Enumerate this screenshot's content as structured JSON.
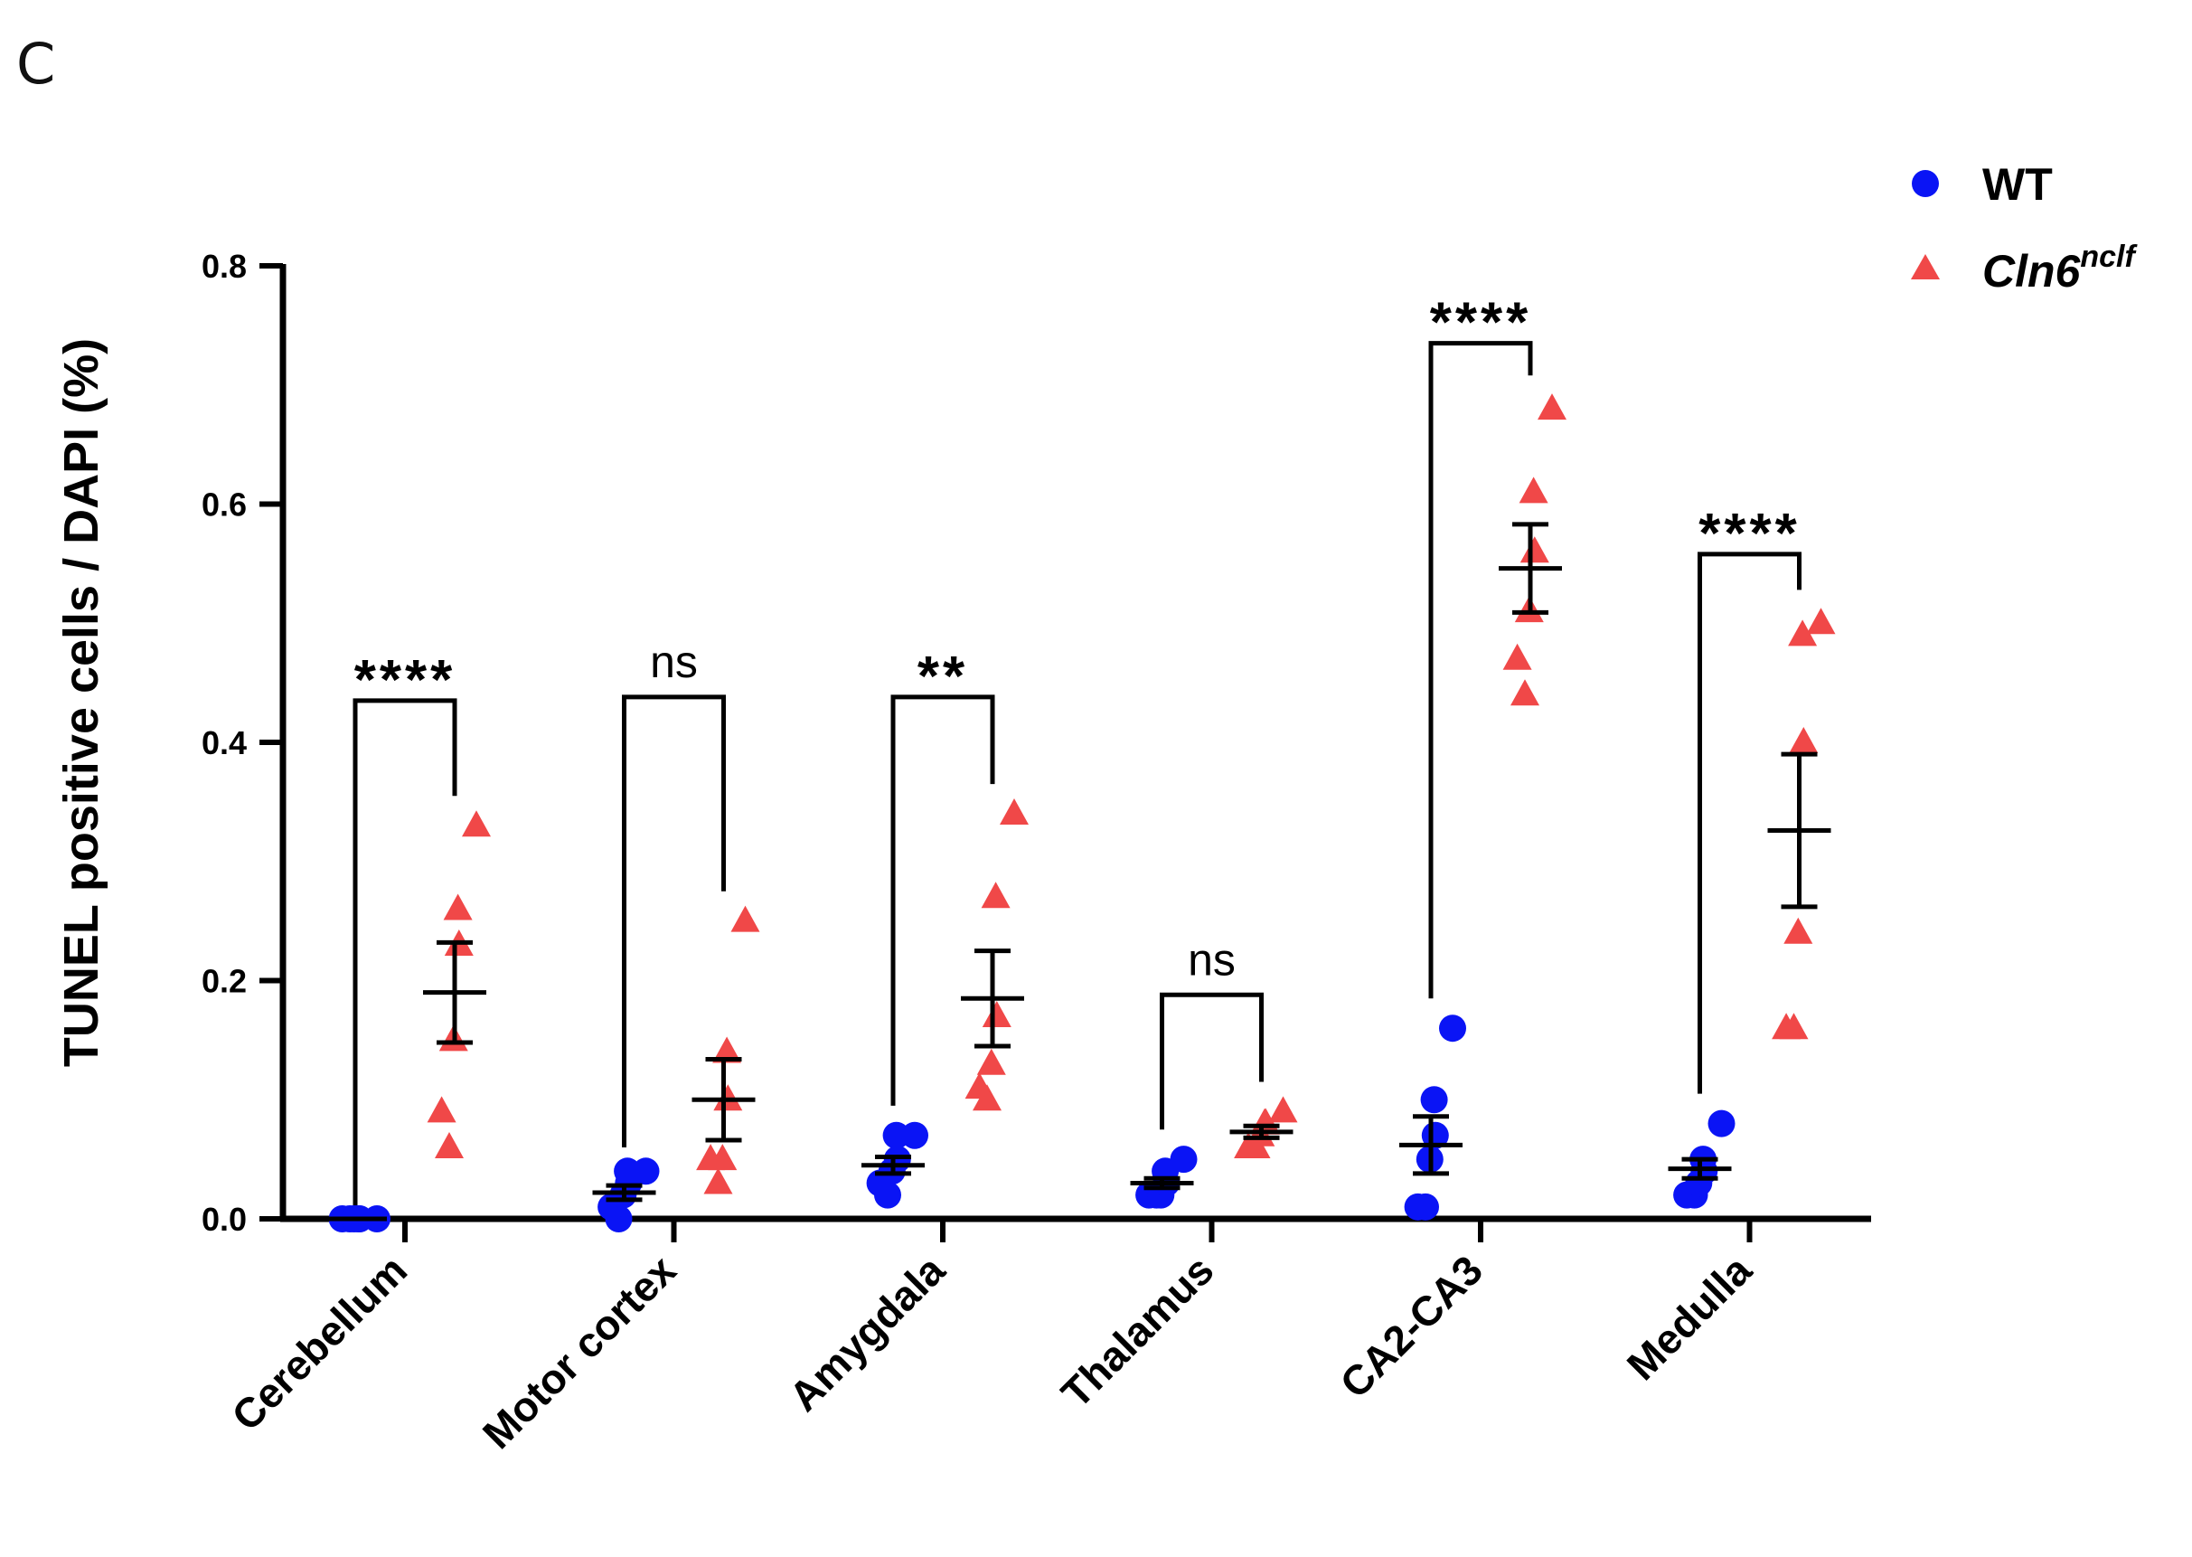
{
  "panel_label": "C",
  "chart_data": {
    "type": "scatter",
    "title": "",
    "xlabel": "",
    "ylabel": "TUNEL positive cells / DAPI (%)",
    "ylim": [
      0,
      0.8
    ],
    "yticks": [
      0.0,
      0.2,
      0.4,
      0.6,
      0.8
    ],
    "ytick_labels": [
      "0.0",
      "0.2",
      "0.4",
      "0.6",
      "0.8"
    ],
    "categories": [
      "Cerebellum",
      "Motor cortex",
      "Amygdala",
      "Thalamus",
      "CA2-CA3",
      "Medulla"
    ],
    "legend_position": "top-right",
    "series": [
      {
        "name": "WT",
        "marker": "circle",
        "color": "#0a14f5",
        "points": [
          [
            0,
            0,
            0,
            0,
            0,
            0
          ],
          [
            0.0,
            0.01,
            0.02,
            0.03,
            0.04,
            0.04
          ],
          [
            0.02,
            0.03,
            0.04,
            0.05,
            0.07,
            0.07
          ],
          [
            0.02,
            0.02,
            0.02,
            0.03,
            0.04,
            0.05
          ],
          [
            0.01,
            0.01,
            0.05,
            0.07,
            0.1,
            0.16
          ],
          [
            0.02,
            0.02,
            0.03,
            0.04,
            0.05,
            0.08
          ]
        ],
        "mean": [
          0.0,
          0.022,
          0.045,
          0.03,
          0.062,
          0.042
        ],
        "sem": [
          0.0,
          0.006,
          0.007,
          0.004,
          0.024,
          0.008
        ]
      },
      {
        "name": "Cln6",
        "name_superscript": "nclf",
        "marker": "triangle",
        "color": "#f04848",
        "points": [
          [
            0.06,
            0.09,
            0.15,
            0.23,
            0.26,
            0.33
          ],
          [
            0.03,
            0.05,
            0.05,
            0.1,
            0.14,
            0.25
          ],
          [
            0.1,
            0.11,
            0.13,
            0.17,
            0.27,
            0.34
          ],
          [
            0.06,
            0.06,
            0.07,
            0.08,
            0.08,
            0.09
          ],
          [
            0.44,
            0.47,
            0.51,
            0.56,
            0.61,
            0.68
          ],
          [
            0.16,
            0.16,
            0.24,
            0.4,
            0.49,
            0.5
          ]
        ],
        "mean": [
          0.19,
          0.1,
          0.185,
          0.073,
          0.546,
          0.326
        ],
        "sem": [
          0.042,
          0.034,
          0.04,
          0.005,
          0.037,
          0.064
        ]
      }
    ],
    "significance": [
      {
        "category": "Cerebellum",
        "label": "****",
        "bar_top": 0.435,
        "left_end": 0.0,
        "right_end": 0.355
      },
      {
        "category": "Motor cortex",
        "label": "ns",
        "bar_top": 0.438,
        "left_end": 0.06,
        "right_end": 0.275
      },
      {
        "category": "Amygdala",
        "label": "**",
        "bar_top": 0.438,
        "left_end": 0.095,
        "right_end": 0.365
      },
      {
        "category": "Thalamus",
        "label": "ns",
        "bar_top": 0.188,
        "left_end": 0.075,
        "right_end": 0.115
      },
      {
        "category": "CA2-CA3",
        "label": "****",
        "bar_top": 0.735,
        "left_end": 0.185,
        "right_end": 0.708
      },
      {
        "category": "Medulla",
        "label": "****",
        "bar_top": 0.558,
        "left_end": 0.105,
        "right_end": 0.528
      }
    ]
  }
}
